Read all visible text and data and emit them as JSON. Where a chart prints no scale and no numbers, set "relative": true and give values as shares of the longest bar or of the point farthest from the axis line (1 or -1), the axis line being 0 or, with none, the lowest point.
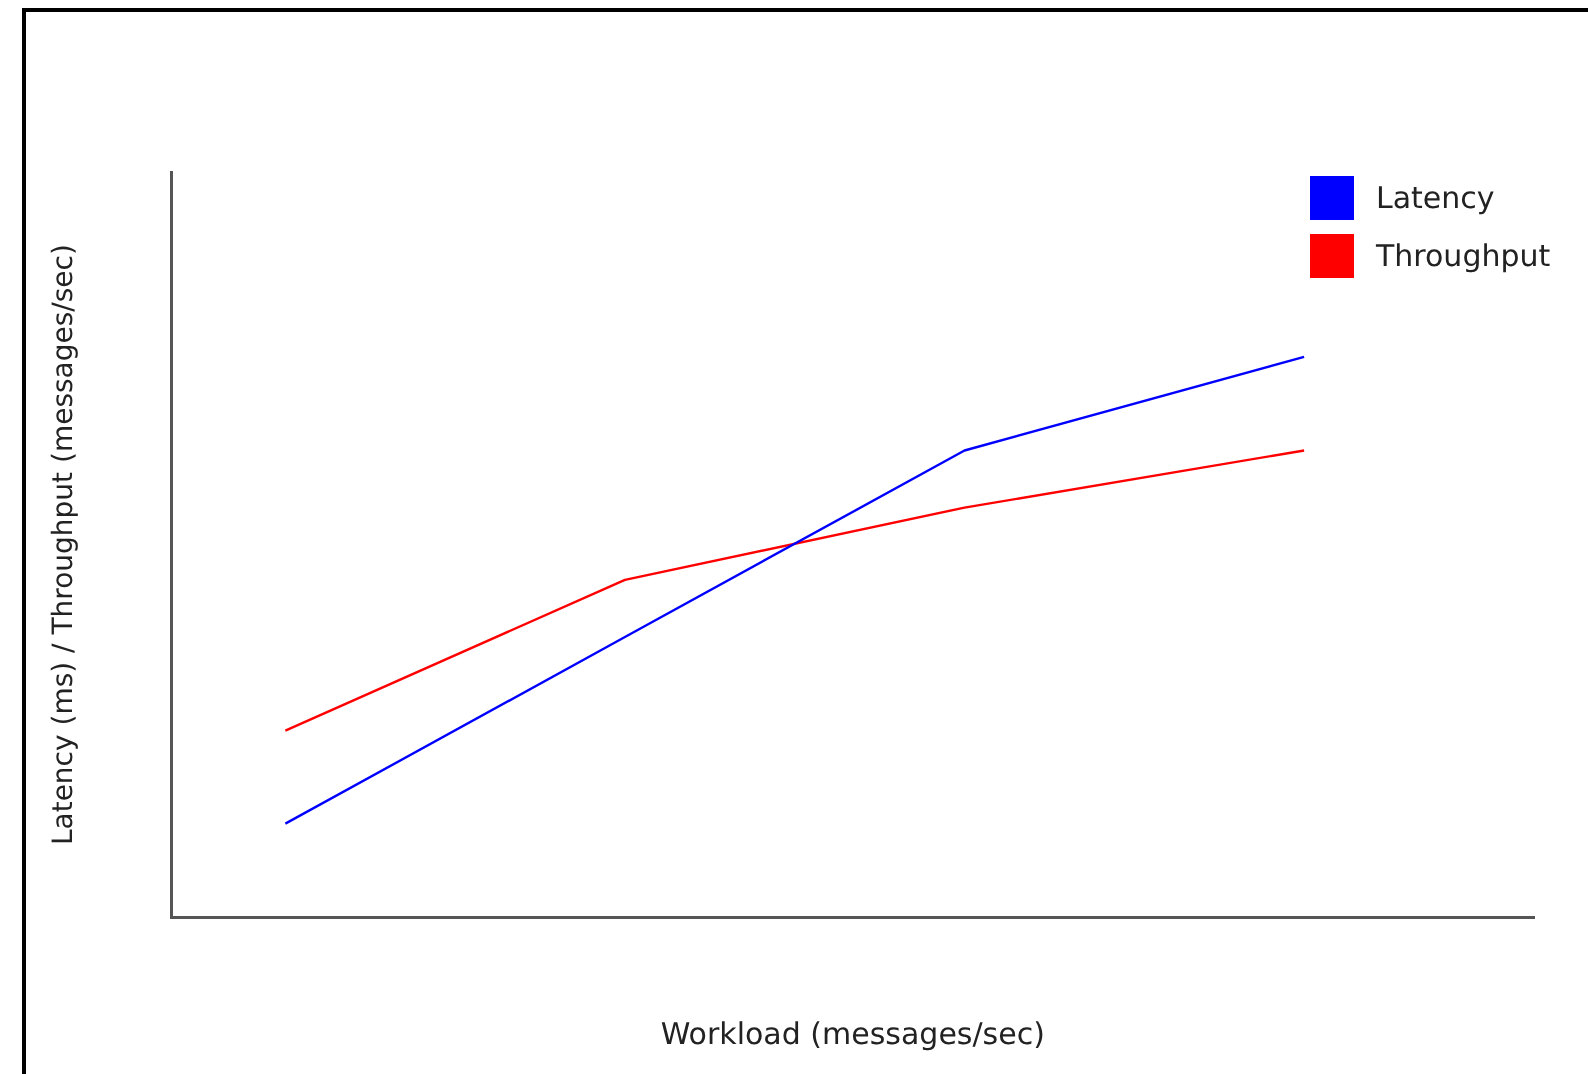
{
  "chart_data": {
    "type": "line",
    "relative": true,
    "xlabel": "Workload (messages/sec)",
    "ylabel": "Latency (ms) / Throughput (messages/sec)",
    "categories": [
      null,
      null,
      null,
      null
    ],
    "legend": "top right",
    "grid": false,
    "marker": "none",
    "line_style": "solid",
    "series": [
      {
        "name": "Latency",
        "color": "#0000ff",
        "values": [
          0.167,
          0.5,
          0.833,
          1
        ]
      },
      {
        "name": "Throughput",
        "color": "#ff0000",
        "values": [
          0.333,
          0.602,
          0.731,
          0.833
        ]
      }
    ]
  }
}
